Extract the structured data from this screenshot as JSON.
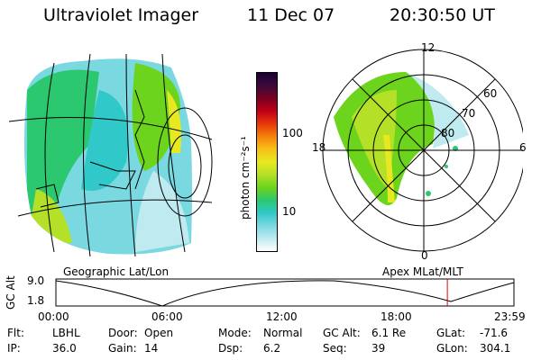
{
  "header": {
    "title": "Ultraviolet Imager",
    "date": "11 Dec 07",
    "time": "20:30:50 UT"
  },
  "colorbar": {
    "label": "photon cm⁻²s⁻¹",
    "ticks": [
      "100",
      "10"
    ],
    "colors": [
      "#1a0033",
      "#3a0a3a",
      "#7a0020",
      "#c00018",
      "#e8380a",
      "#f4820a",
      "#f8c018",
      "#e8e820",
      "#b4e028",
      "#6cd41c",
      "#2cc870",
      "#30c8c8",
      "#7ad8e0",
      "#bfeaf0",
      "#ffffff"
    ]
  },
  "apex_ticks": {
    "mlt": [
      "12",
      "18",
      "6",
      "0"
    ],
    "mlat": [
      "60",
      "70",
      "80"
    ]
  },
  "labels": {
    "geo": "Geographic Lat/Lon",
    "apex": "Apex MLat/MLT"
  },
  "timeline": {
    "ylabel": "GC Alt",
    "yticks": [
      "9.0",
      "1.8"
    ],
    "xticks": [
      "00:00",
      "06:00",
      "12:00",
      "18:00",
      "23:59"
    ],
    "marker_hour": 20.51
  },
  "info": [
    [
      {
        "k": "Flt:",
        "v": "LBHL"
      },
      {
        "k": "Door:",
        "v": "Open"
      },
      {
        "k": "Mode:",
        "v": "Normal"
      },
      {
        "k": "GC Alt:",
        "v": "6.1 Re"
      },
      {
        "k": "GLat:",
        "v": "-71.6"
      }
    ],
    [
      {
        "k": "IP:",
        "v": "36.0"
      },
      {
        "k": "Gain:",
        "v": "14"
      },
      {
        "k": "Dsp:",
        "v": "6.2"
      },
      {
        "k": "Seq:",
        "v": "39"
      },
      {
        "k": "GLon:",
        "v": "304.1"
      }
    ]
  ]
}
